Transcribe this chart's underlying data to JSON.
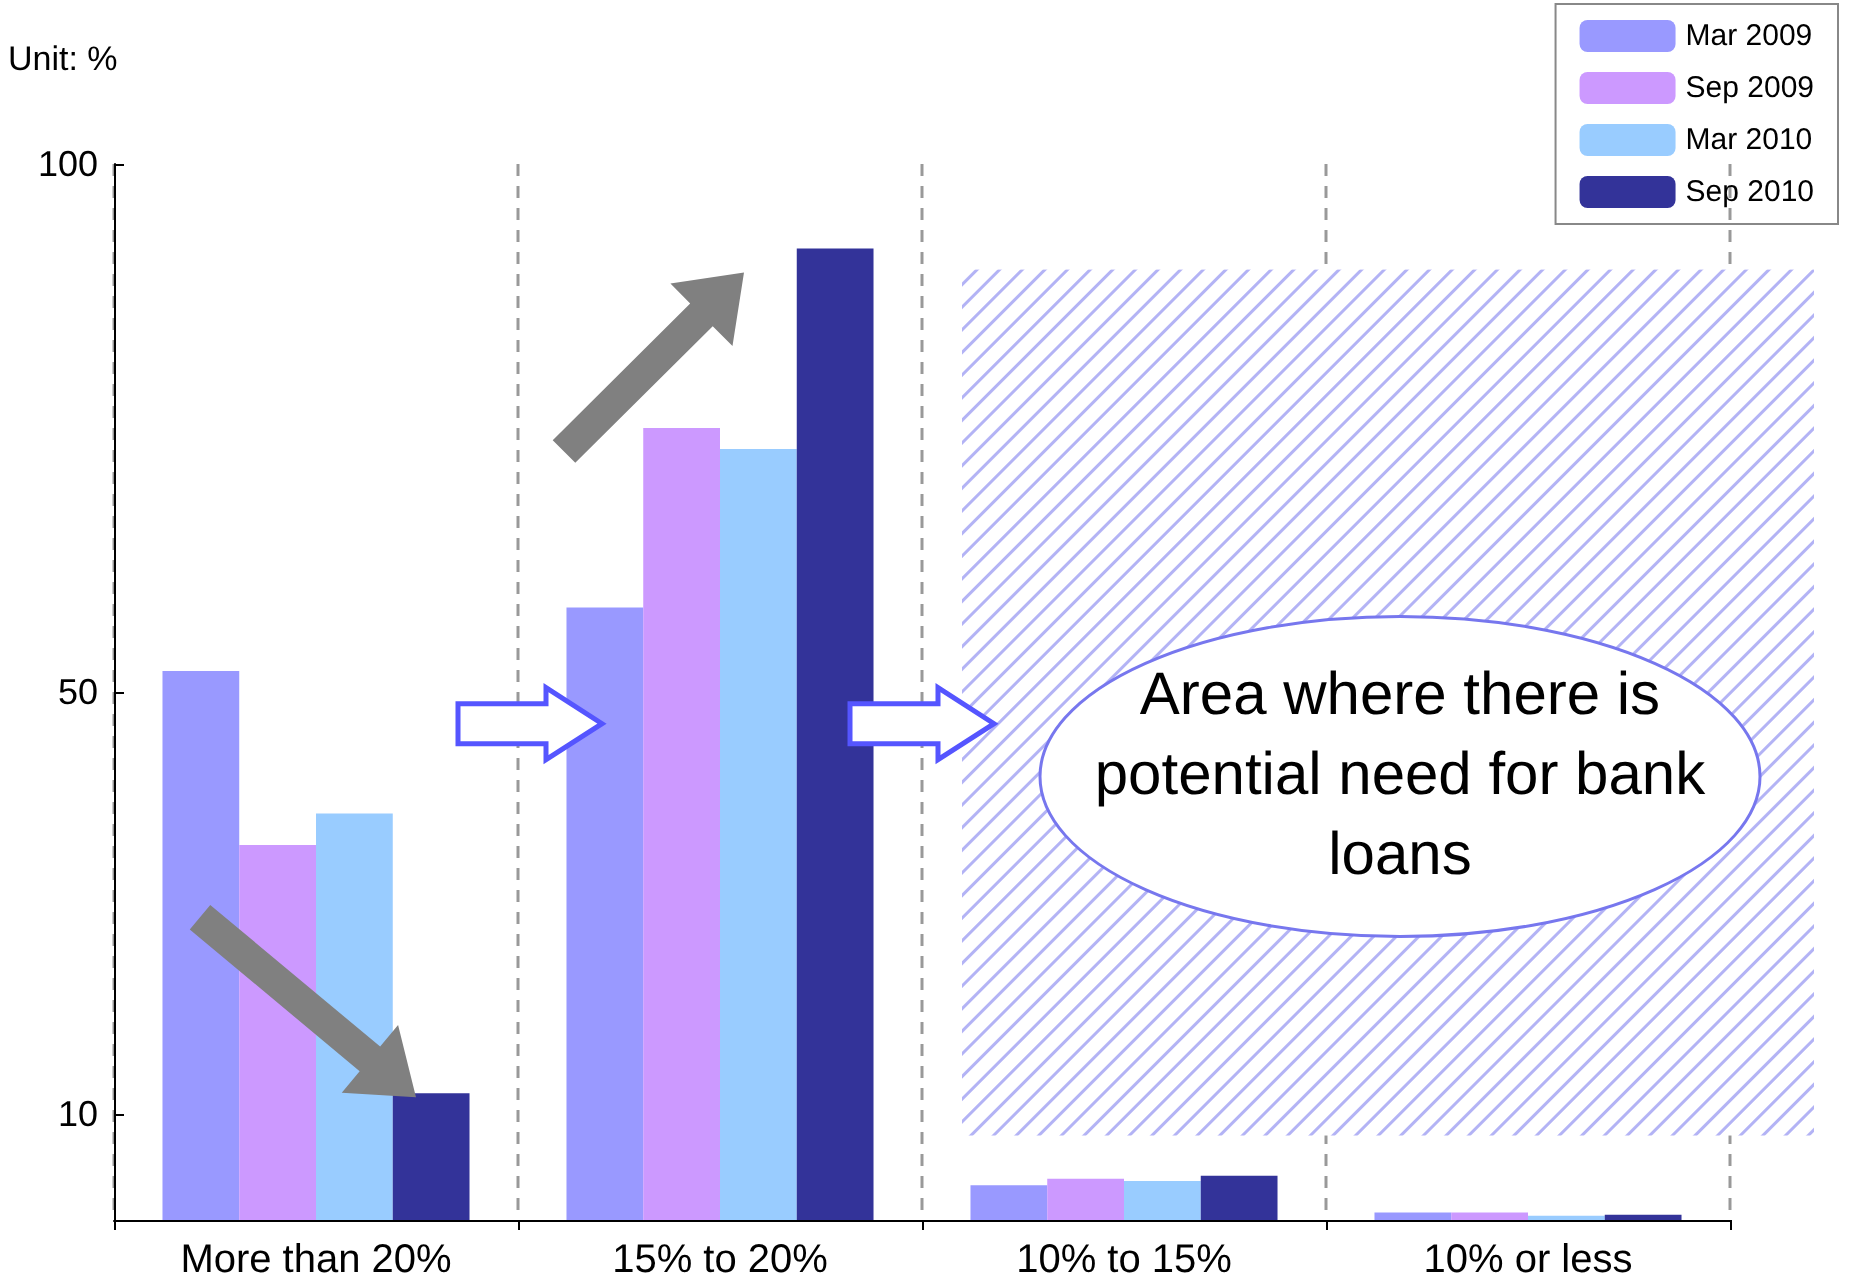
{
  "chart_data": {
    "type": "bar",
    "categories": [
      "More than 20%",
      "15% to 20%",
      "10% to 15%",
      "10% or less"
    ],
    "series": [
      {
        "name": "Mar 2009",
        "color": "#9999ff",
        "values": [
          52,
          58,
          3.3,
          0.7
        ]
      },
      {
        "name": "Sep 2009",
        "color": "#cc99ff",
        "values": [
          35.5,
          75,
          3.9,
          0.7
        ]
      },
      {
        "name": "Mar 2010",
        "color": "#99ccff",
        "values": [
          38.5,
          73,
          3.7,
          0.4
        ]
      },
      {
        "name": "Sep 2010",
        "color": "#333399",
        "values": [
          12,
          92,
          4.2,
          0.5
        ]
      }
    ],
    "ylim": [
      0,
      100
    ],
    "yticks": [
      10,
      50,
      100
    ],
    "grid": "x",
    "legend": "top right",
    "annotations": [
      "Unit: %",
      "Area where there is potential need for bank loans"
    ]
  }
}
